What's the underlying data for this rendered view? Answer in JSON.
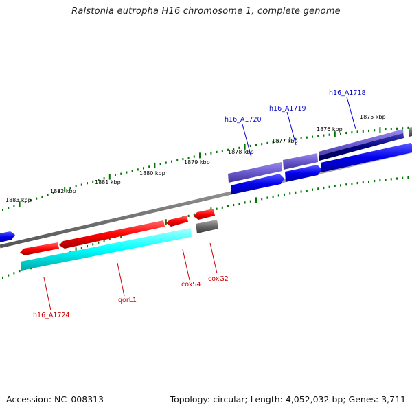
{
  "title": "Ralstonia eutropha H16 chromosome 1, complete genome",
  "footer": {
    "accession": "Accession: NC_008313",
    "topology": "Topology: circular; Length: 4,052,032 bp; Genes: 3,711"
  },
  "kbp_ticks": [
    "1883 kbp",
    "1882 kbp",
    "1881 kbp",
    "1880 kbp",
    "1879 kbp",
    "1878 kbp",
    "1877 kbp",
    "1876 kbp",
    "1875 kbp"
  ],
  "gene_labels": {
    "top": [
      "h16_A1720",
      "h16_A1719",
      "h16_A1718"
    ],
    "bottom": [
      "h16_A1724",
      "qorL1",
      "coxS4",
      "coxG2"
    ]
  },
  "colors": {
    "cds_forward": "#0000ee",
    "cds_reverse": "#ff0000",
    "rna_cyan": "#00ffff",
    "orf_purple": "#6a5acd",
    "orf_navy": "#000080",
    "gray": "#666666",
    "tick_green": "#007700",
    "label_blue": "#0000cc",
    "label_red": "#cc0000"
  }
}
